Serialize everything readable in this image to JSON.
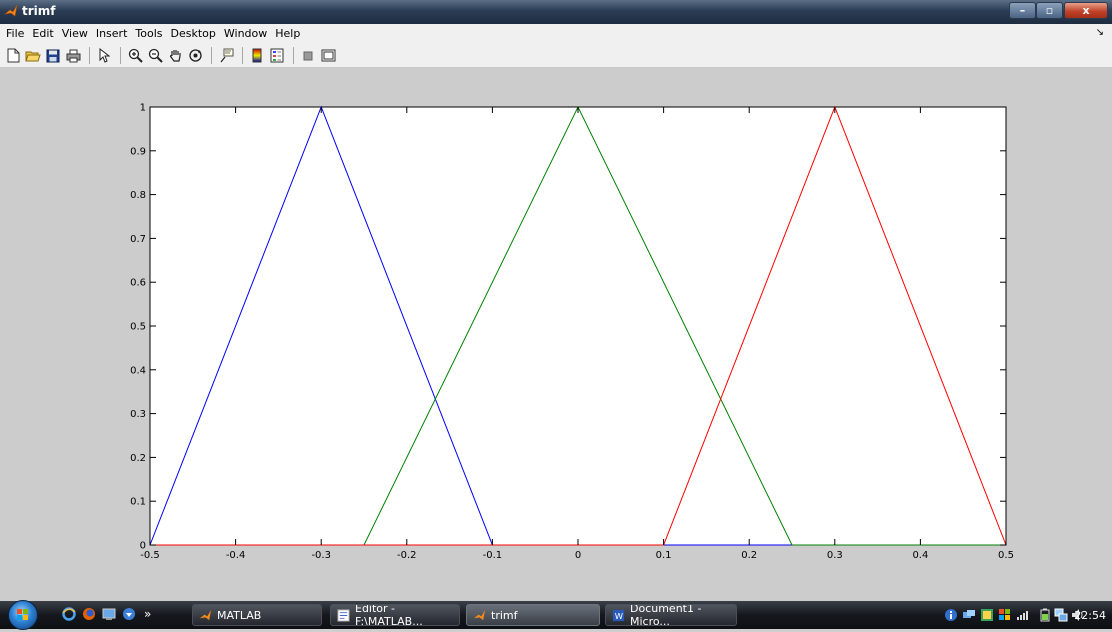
{
  "window": {
    "title": "trimf",
    "minimize": "–",
    "maximize": "▫",
    "close": "x"
  },
  "menu": {
    "items": [
      "File",
      "Edit",
      "View",
      "Insert",
      "Tools",
      "Desktop",
      "Window",
      "Help"
    ],
    "arrow": "↘"
  },
  "toolbar": {
    "icons": [
      "new-file-icon",
      "open-folder-icon",
      "save-icon",
      "print-icon",
      "pointer-icon",
      "zoom-in-icon",
      "zoom-out-icon",
      "pan-hand-icon",
      "rotate-3d-icon",
      "data-cursor-icon",
      "colorbar-icon",
      "legend-icon",
      "hide-plot-tools-icon",
      "show-plot-tools-icon"
    ]
  },
  "chart_data": {
    "type": "line",
    "xlim": [
      -0.5,
      0.5
    ],
    "ylim": [
      0,
      1
    ],
    "xticks": [
      -0.5,
      -0.4,
      -0.3,
      -0.2,
      -0.1,
      0,
      0.1,
      0.2,
      0.3,
      0.4,
      0.5
    ],
    "xtick_labels": [
      "-0.5",
      "-0.4",
      "-0.3",
      "-0.2",
      "-0.1",
      "0",
      "0.1",
      "0.2",
      "0.3",
      "0.4",
      "0.5"
    ],
    "yticks": [
      0,
      0.1,
      0.2,
      0.3,
      0.4,
      0.5,
      0.6,
      0.7,
      0.8,
      0.9,
      1
    ],
    "ytick_labels": [
      "0",
      "0.1",
      "0.2",
      "0.3",
      "0.4",
      "0.5",
      "0.6",
      "0.7",
      "0.8",
      "0.9",
      "1"
    ],
    "grid": false,
    "series": [
      {
        "color": "#0000ff",
        "x": [
          -0.5,
          -0.3,
          -0.1,
          0.5
        ],
        "y": [
          0,
          1,
          0,
          0
        ]
      },
      {
        "color": "#008000",
        "x": [
          -0.5,
          -0.25,
          0,
          0.25,
          0.5
        ],
        "y": [
          0,
          0,
          1,
          0,
          0
        ]
      },
      {
        "color": "#ff0000",
        "x": [
          -0.5,
          0.1,
          0.3,
          0.5
        ],
        "y": [
          0,
          0,
          1,
          0
        ]
      }
    ]
  },
  "taskbar": {
    "overflow": "»",
    "buttons": [
      {
        "label": "MATLAB",
        "icon": "matlab-icon"
      },
      {
        "label": "Editor - F:\\MATLAB...",
        "icon": "editor-icon"
      },
      {
        "label": "trimf",
        "icon": "matlab-figure-icon"
      },
      {
        "label": "Document1 - Micro...",
        "icon": "word-icon"
      }
    ],
    "clock": "22:54"
  }
}
